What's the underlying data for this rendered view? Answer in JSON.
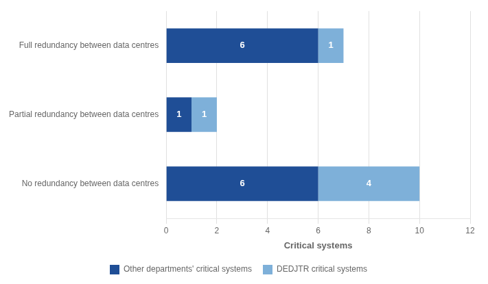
{
  "chart_data": {
    "type": "bar",
    "orientation": "horizontal",
    "stacked": true,
    "categories": [
      "No redundancy between data centres",
      "Partial redundancy between data centres",
      "Full redundancy between data centres"
    ],
    "series": [
      {
        "name": "Other departments' critical systems",
        "color": "#1F4E96",
        "values": [
          6,
          1,
          6
        ]
      },
      {
        "name": "DEDJTR critical systems",
        "color": "#7EB0D9",
        "values": [
          4,
          1,
          1
        ]
      }
    ],
    "xlabel": "Critical systems",
    "xlim": [
      0,
      12
    ],
    "xticks": [
      0,
      2,
      4,
      6,
      8,
      10,
      12
    ],
    "grid": true,
    "data_labels": true,
    "legend": "bottom"
  }
}
